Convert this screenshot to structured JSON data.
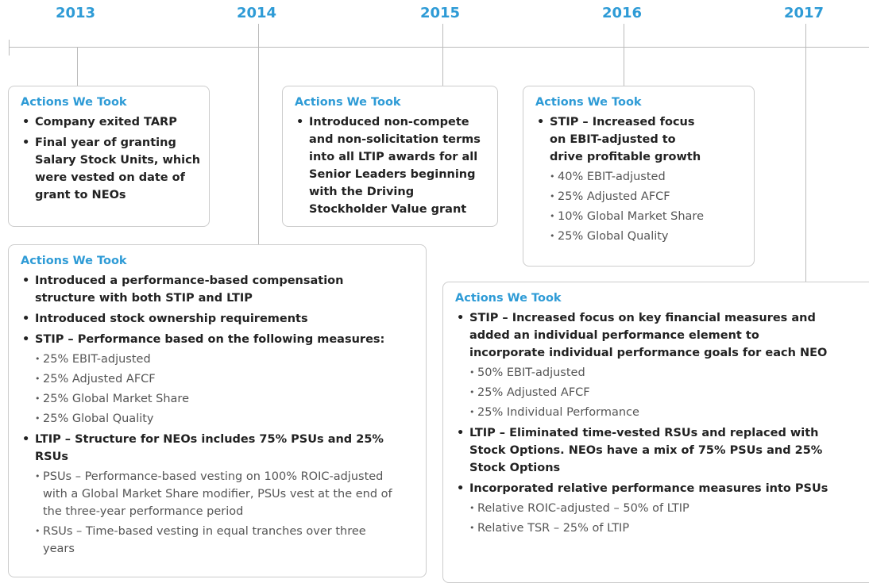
{
  "years": [
    "2013",
    "2014",
    "2015",
    "2016",
    "2017"
  ],
  "boxes": [
    {
      "heading": "Actions We Took",
      "items": [
        {
          "text": "Company exited TARP",
          "subitems": []
        },
        {
          "text": "Final year of granting Salary Stock Units, which were vested on date of grant to NEOs",
          "subitems": []
        }
      ]
    },
    {
      "heading": "Actions We Took",
      "items": [
        {
          "text": "Introduced a performance-based compensation structure with both STIP and LTIP",
          "subitems": []
        },
        {
          "text": "Introduced stock ownership requirements",
          "subitems": []
        },
        {
          "text": "STIP – Performance based on the following measures:",
          "subitems": [
            "25% EBIT-adjusted",
            "25% Adjusted AFCF",
            "25% Global Market Share",
            "25% Global Quality"
          ]
        },
        {
          "text": "LTIP – Structure for NEOs includes 75% PSUs and 25% RSUs",
          "subitems": [
            "PSUs – Performance-based vesting on 100% ROIC-adjusted with a Global Market Share modifier, PSUs vest at the end of the three-year performance period",
            "RSUs – Time-based vesting in equal tranches over three years"
          ]
        }
      ]
    },
    {
      "heading": "Actions We Took",
      "items": [
        {
          "text": "Introduced non-compete and non-solicitation terms into all LTIP awards for all Senior Leaders beginning with the Driving Stockholder Value grant",
          "subitems": []
        }
      ]
    },
    {
      "heading": "Actions We Took",
      "items": [
        {
          "text": "STIP – Increased focus on EBIT-adjusted to drive profitable growth",
          "subitems": [
            "40% EBIT-adjusted",
            "25% Adjusted AFCF",
            "10% Global Market Share",
            "25% Global Quality"
          ]
        }
      ]
    },
    {
      "heading": "Actions We Took",
      "items": [
        {
          "text": "STIP – Increased focus on key financial measures and added an individual performance element to incorporate individual performance goals for each NEO",
          "subitems": [
            "50% EBIT-adjusted",
            "25% Adjusted AFCF",
            "25% Individual Performance"
          ]
        },
        {
          "text": "LTIP – Eliminated time-vested RSUs and replaced with Stock Options.  NEOs have a mix of 75% PSUs and 25% Stock Options",
          "subitems": []
        },
        {
          "text": "Incorporated relative performance measures into PSUs",
          "subitems": [
            "Relative ROIC-adjusted – 50% of LTIP",
            "Relative TSR – 25% of LTIP"
          ]
        }
      ]
    }
  ]
}
